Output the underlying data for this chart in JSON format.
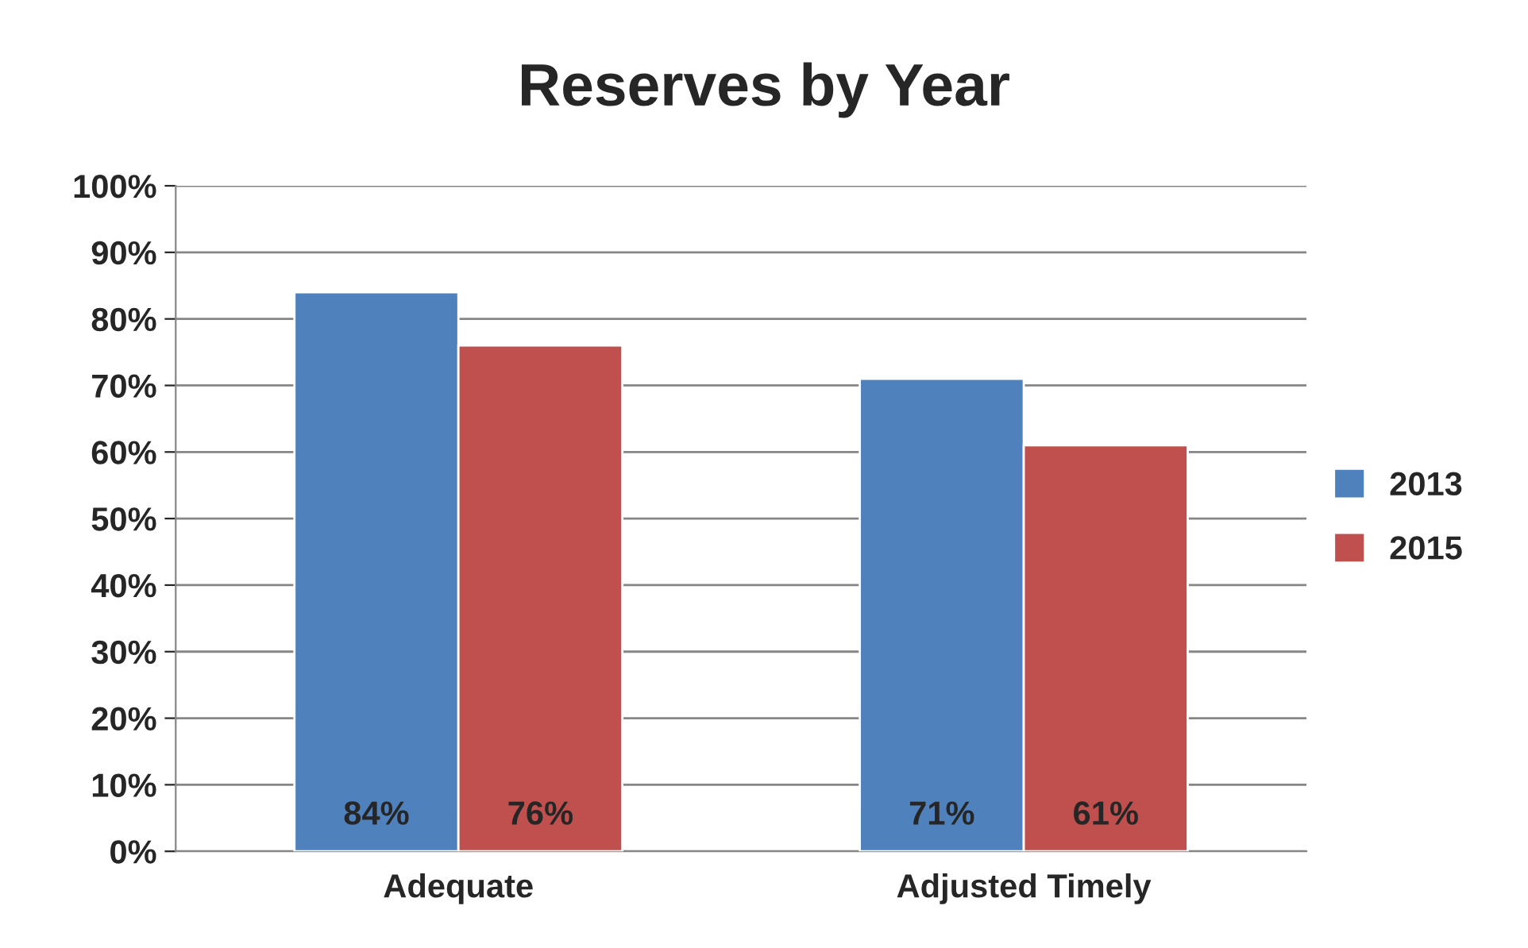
{
  "chart_data": {
    "type": "bar",
    "title": "Reserves by Year",
    "categories": [
      "Adequate",
      "Adjusted Timely"
    ],
    "series": [
      {
        "name": "2013",
        "color": "#4f81bd",
        "values": [
          84,
          71
        ],
        "value_labels": [
          "84%",
          "71%"
        ]
      },
      {
        "name": "2015",
        "color": "#c0504d",
        "values": [
          76,
          61
        ],
        "value_labels": [
          "76%",
          "61%"
        ]
      }
    ],
    "ylim": [
      0,
      100
    ],
    "yticks": [
      {
        "value": 0,
        "label": "0%"
      },
      {
        "value": 10,
        "label": "10%"
      },
      {
        "value": 20,
        "label": "20%"
      },
      {
        "value": 30,
        "label": "30%"
      },
      {
        "value": 40,
        "label": "40%"
      },
      {
        "value": 50,
        "label": "50%"
      },
      {
        "value": 60,
        "label": "60%"
      },
      {
        "value": 70,
        "label": "70%"
      },
      {
        "value": 80,
        "label": "80%"
      },
      {
        "value": 90,
        "label": "90%"
      },
      {
        "value": 100,
        "label": "100%"
      }
    ],
    "grid": "y",
    "legend": "right"
  }
}
